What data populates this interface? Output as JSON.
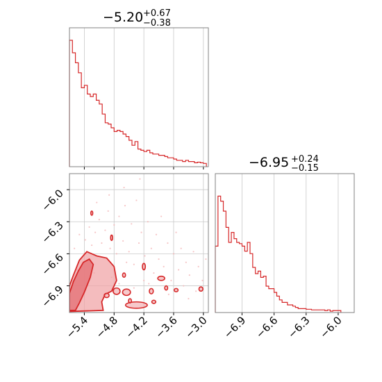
{
  "chart_data": [
    {
      "type": "histogram",
      "panel": "top-left",
      "title": {
        "median": "−5.20",
        "plus": "+0.67",
        "minus": "−0.38"
      },
      "xlim": [
        -5.7,
        -2.9
      ],
      "xticks": [
        -5.4,
        -4.8,
        -4.2,
        -3.6,
        -3.0
      ],
      "tick_labels_shown": false,
      "grid": true,
      "color": "#d62728",
      "bins": [
        [
          -5.7,
          1.0
        ],
        [
          -5.64,
          0.9
        ],
        [
          -5.58,
          0.82
        ],
        [
          -5.52,
          0.74
        ],
        [
          -5.46,
          0.62
        ],
        [
          -5.4,
          0.64
        ],
        [
          -5.34,
          0.57
        ],
        [
          -5.28,
          0.55
        ],
        [
          -5.22,
          0.57
        ],
        [
          -5.16,
          0.52
        ],
        [
          -5.1,
          0.49
        ],
        [
          -5.04,
          0.41
        ],
        [
          -4.98,
          0.34
        ],
        [
          -4.92,
          0.33
        ],
        [
          -4.86,
          0.3
        ],
        [
          -4.8,
          0.27
        ],
        [
          -4.74,
          0.28
        ],
        [
          -4.68,
          0.27
        ],
        [
          -4.62,
          0.25
        ],
        [
          -4.56,
          0.23
        ],
        [
          -4.5,
          0.2
        ],
        [
          -4.44,
          0.16
        ],
        [
          -4.38,
          0.19
        ],
        [
          -4.32,
          0.13
        ],
        [
          -4.26,
          0.12
        ],
        [
          -4.2,
          0.11
        ],
        [
          -4.14,
          0.12
        ],
        [
          -4.08,
          0.1
        ],
        [
          -4.02,
          0.09
        ],
        [
          -3.96,
          0.09
        ],
        [
          -3.9,
          0.08
        ],
        [
          -3.84,
          0.08
        ],
        [
          -3.78,
          0.07
        ],
        [
          -3.72,
          0.06
        ],
        [
          -3.66,
          0.06
        ],
        [
          -3.6,
          0.05
        ],
        [
          -3.54,
          0.04
        ],
        [
          -3.48,
          0.04
        ],
        [
          -3.42,
          0.03
        ],
        [
          -3.36,
          0.04
        ],
        [
          -3.3,
          0.03
        ],
        [
          -3.24,
          0.03
        ],
        [
          -3.18,
          0.02
        ],
        [
          -3.12,
          0.025
        ],
        [
          -3.06,
          0.02
        ],
        [
          -3.0,
          0.015
        ]
      ]
    },
    {
      "type": "histogram",
      "panel": "bottom-right",
      "title": {
        "median": "−6.95",
        "plus": "+0.24",
        "minus": "−0.15"
      },
      "xlim": [
        -7.15,
        -5.85
      ],
      "xticks": [
        -6.9,
        -6.6,
        -6.3,
        -6.0
      ],
      "tick_labels": [
        "−6.9",
        "−6.6",
        "−6.3",
        "−6.0"
      ],
      "grid": true,
      "color": "#d62728",
      "bins": [
        [
          -7.15,
          0.52
        ],
        [
          -7.125,
          0.92
        ],
        [
          -7.1,
          0.88
        ],
        [
          -7.075,
          0.8
        ],
        [
          -7.05,
          0.67
        ],
        [
          -7.025,
          0.55
        ],
        [
          -7.0,
          0.63
        ],
        [
          -6.975,
          0.58
        ],
        [
          -6.95,
          0.55
        ],
        [
          -6.925,
          0.54
        ],
        [
          -6.9,
          0.52
        ],
        [
          -6.875,
          0.48
        ],
        [
          -6.85,
          0.55
        ],
        [
          -6.825,
          0.46
        ],
        [
          -6.8,
          0.35
        ],
        [
          -6.775,
          0.3
        ],
        [
          -6.75,
          0.32
        ],
        [
          -6.725,
          0.27
        ],
        [
          -6.7,
          0.28
        ],
        [
          -6.675,
          0.2
        ],
        [
          -6.65,
          0.18
        ],
        [
          -6.625,
          0.18
        ],
        [
          -6.6,
          0.15
        ],
        [
          -6.575,
          0.12
        ],
        [
          -6.55,
          0.09
        ],
        [
          -6.525,
          0.07
        ],
        [
          -6.5,
          0.07
        ],
        [
          -6.475,
          0.05
        ],
        [
          -6.45,
          0.05
        ],
        [
          -6.425,
          0.04
        ],
        [
          -6.4,
          0.03
        ],
        [
          -6.375,
          0.02
        ],
        [
          -6.35,
          0.02
        ],
        [
          -6.325,
          0.02
        ],
        [
          -6.3,
          0.015
        ],
        [
          -6.275,
          0.015
        ],
        [
          -6.25,
          0.01
        ],
        [
          -6.225,
          0.01
        ],
        [
          -6.2,
          0.01
        ],
        [
          -6.175,
          0.01
        ],
        [
          -6.15,
          0.01
        ],
        [
          -6.125,
          0.005
        ],
        [
          -6.1,
          0.01
        ],
        [
          -6.075,
          0.0
        ],
        [
          -6.05,
          0.005
        ],
        [
          -6.025,
          0.005
        ],
        [
          -6.0,
          0.005
        ]
      ]
    },
    {
      "type": "scatter",
      "panel": "bottom-left",
      "subtype": "2d-density-contour",
      "xlim": [
        -5.7,
        -2.9
      ],
      "ylim": [
        -7.15,
        -5.85
      ],
      "xticks": [
        -5.4,
        -4.8,
        -4.2,
        -3.6,
        -3.0
      ],
      "xtick_labels": [
        "−5.4",
        "−4.8",
        "−4.2",
        "−3.6",
        "−3.0"
      ],
      "yticks": [
        -6.9,
        -6.6,
        -6.3,
        -6.0
      ],
      "ytick_labels": [
        "−6.9",
        "−6.6",
        "−6.3",
        "−6.0"
      ],
      "grid": true,
      "color": "#d62728",
      "contour_fill": "#f0a5a8",
      "core_contour": [
        [
          -5.7,
          -7.13
        ],
        [
          -5.7,
          -6.97
        ],
        [
          -5.62,
          -6.86
        ],
        [
          -5.52,
          -6.76
        ],
        [
          -5.42,
          -6.68
        ],
        [
          -5.3,
          -6.65
        ],
        [
          -5.22,
          -6.7
        ],
        [
          -5.28,
          -6.82
        ],
        [
          -5.4,
          -6.96
        ],
        [
          -5.5,
          -7.06
        ],
        [
          -5.58,
          -7.13
        ]
      ],
      "outer_contour": [
        [
          -5.7,
          -7.14
        ],
        [
          -5.7,
          -6.9
        ],
        [
          -5.62,
          -6.8
        ],
        [
          -5.5,
          -6.66
        ],
        [
          -5.35,
          -6.58
        ],
        [
          -5.15,
          -6.62
        ],
        [
          -4.95,
          -6.64
        ],
        [
          -4.8,
          -6.72
        ],
        [
          -4.75,
          -6.85
        ],
        [
          -4.85,
          -6.95
        ],
        [
          -4.98,
          -6.98
        ],
        [
          -5.05,
          -7.05
        ],
        [
          -5.02,
          -7.13
        ]
      ],
      "blobs": [
        [
          -4.75,
          -6.95,
          0.07,
          0.03
        ],
        [
          -4.55,
          -6.96,
          0.08,
          0.03
        ],
        [
          -4.35,
          -7.08,
          0.22,
          0.03
        ],
        [
          -4.05,
          -6.95,
          0.04,
          0.025
        ],
        [
          -3.85,
          -6.83,
          0.07,
          0.02
        ],
        [
          -3.75,
          -6.92,
          0.03,
          0.02
        ],
        [
          -3.55,
          -6.94,
          0.04,
          0.015
        ],
        [
          -3.05,
          -6.93,
          0.04,
          0.02
        ],
        [
          -4.2,
          -6.72,
          0.03,
          0.03
        ],
        [
          -4.6,
          -6.8,
          0.03,
          0.02
        ],
        [
          -4.85,
          -6.45,
          0.02,
          0.025
        ],
        [
          -5.25,
          -6.22,
          0.02,
          0.02
        ],
        [
          -4.48,
          -7.04,
          0.03,
          0.02
        ],
        [
          -4.95,
          -6.99,
          0.05,
          0.02
        ],
        [
          -4.0,
          -7.05,
          0.04,
          0.015
        ]
      ],
      "scatter_points": [
        [
          -5.6,
          -6.55
        ],
        [
          -5.5,
          -6.42
        ],
        [
          -5.45,
          -6.7
        ],
        [
          -5.38,
          -6.47
        ],
        [
          -5.3,
          -6.35
        ],
        [
          -5.25,
          -6.52
        ],
        [
          -5.18,
          -6.4
        ],
        [
          -5.1,
          -6.28
        ],
        [
          -5.05,
          -6.5
        ],
        [
          -4.98,
          -6.38
        ],
        [
          -4.92,
          -6.2
        ],
        [
          -4.88,
          -6.55
        ],
        [
          -4.8,
          -6.33
        ],
        [
          -4.75,
          -6.6
        ],
        [
          -4.7,
          -6.25
        ],
        [
          -4.62,
          -6.48
        ],
        [
          -4.58,
          -6.15
        ],
        [
          -4.5,
          -6.58
        ],
        [
          -4.45,
          -6.32
        ],
        [
          -4.4,
          -6.7
        ],
        [
          -4.35,
          -6.1
        ],
        [
          -4.3,
          -6.5
        ],
        [
          -4.25,
          -6.4
        ],
        [
          -4.18,
          -6.62
        ],
        [
          -4.12,
          -6.3
        ],
        [
          -4.05,
          -6.55
        ],
        [
          -4.0,
          -6.78
        ],
        [
          -3.95,
          -6.42
        ],
        [
          -3.9,
          -6.65
        ],
        [
          -3.85,
          -6.25
        ],
        [
          -3.8,
          -6.72
        ],
        [
          -3.72,
          -6.5
        ],
        [
          -3.65,
          -6.85
        ],
        [
          -3.6,
          -6.6
        ],
        [
          -3.55,
          -6.4
        ],
        [
          -3.5,
          -6.75
        ],
        [
          -3.45,
          -6.55
        ],
        [
          -3.4,
          -6.9
        ],
        [
          -3.35,
          -6.68
        ],
        [
          -3.28,
          -6.8
        ],
        [
          -3.2,
          -6.58
        ],
        [
          -3.15,
          -6.95
        ],
        [
          -3.1,
          -6.72
        ],
        [
          -3.02,
          -6.85
        ],
        [
          -2.95,
          -6.65
        ],
        [
          -4.28,
          -5.9
        ],
        [
          -4.6,
          -5.98
        ],
        [
          -4.9,
          -6.05
        ],
        [
          -5.15,
          -6.12
        ],
        [
          -4.7,
          -6.88
        ],
        [
          -4.4,
          -6.92
        ],
        [
          -4.1,
          -6.88
        ],
        [
          -3.7,
          -6.98
        ],
        [
          -3.3,
          -7.02
        ],
        [
          -5.4,
          -6.6
        ],
        [
          -5.55,
          -6.75
        ],
        [
          -5.2,
          -6.78
        ],
        [
          -4.85,
          -6.82
        ],
        [
          -4.55,
          -6.68
        ],
        [
          -4.2,
          -6.85
        ]
      ]
    }
  ]
}
